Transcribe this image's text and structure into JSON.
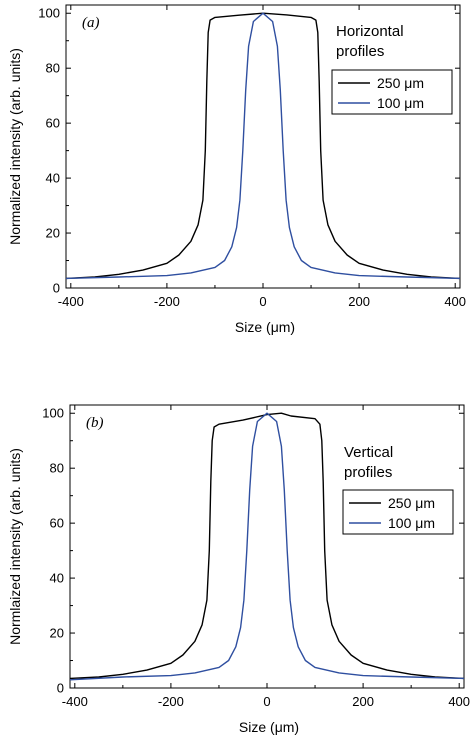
{
  "chart_data": [
    {
      "type": "line",
      "panel_label": "(a)",
      "annotation": [
        "Horizontal",
        "profiles"
      ],
      "xlabel": "Size (μm)",
      "ylabel": "Normalized intensity (arb. units)",
      "xlim": [
        -410,
        410
      ],
      "ylim": [
        0,
        103
      ],
      "xticks": [
        -400,
        -200,
        0,
        200,
        400
      ],
      "yticks": [
        0,
        20,
        40,
        60,
        80,
        100
      ],
      "grid": false,
      "legend_position": "right",
      "series": [
        {
          "name": "250 μm",
          "color": "#000000",
          "x": [
            -410,
            -350,
            -300,
            -250,
            -200,
            -175,
            -150,
            -135,
            -125,
            -120,
            -117,
            -114,
            -110,
            -100,
            -50,
            0,
            50,
            100,
            110,
            114,
            117,
            120,
            125,
            135,
            150,
            175,
            200,
            250,
            300,
            350,
            410
          ],
          "y": [
            3.5,
            4,
            5,
            6.5,
            9,
            12,
            17,
            23,
            32,
            50,
            75,
            93,
            97.5,
            98.5,
            99.3,
            100,
            99.4,
            98.5,
            97.5,
            93,
            75,
            50,
            32,
            23,
            17,
            12,
            9,
            6.5,
            5,
            4,
            3.5
          ]
        },
        {
          "name": "100 μm",
          "color": "#2f4fa0",
          "x": [
            -410,
            -300,
            -200,
            -150,
            -100,
            -80,
            -65,
            -55,
            -48,
            -42,
            -36,
            -30,
            -20,
            0,
            20,
            30,
            36,
            42,
            48,
            55,
            65,
            80,
            100,
            150,
            200,
            300,
            410
          ],
          "y": [
            3.5,
            4,
            4.5,
            5.5,
            7.5,
            10,
            15,
            22,
            32,
            50,
            72,
            88,
            97,
            100,
            97,
            88,
            72,
            50,
            32,
            22,
            15,
            10,
            7.5,
            5.5,
            4.5,
            4,
            3.5
          ]
        }
      ]
    },
    {
      "type": "line",
      "panel_label": "(b)",
      "annotation": [
        "Vertical",
        "profiles"
      ],
      "xlabel": "Size (μm)",
      "ylabel": "Normlaized intensity (arb. units)",
      "xlim": [
        -410,
        410
      ],
      "ylim": [
        0,
        103
      ],
      "xticks": [
        -400,
        -200,
        0,
        200,
        400
      ],
      "yticks": [
        0,
        20,
        40,
        60,
        80,
        100
      ],
      "grid": false,
      "legend_position": "right",
      "series": [
        {
          "name": "250 μm",
          "color": "#000000",
          "x": [
            -410,
            -350,
            -300,
            -250,
            -200,
            -175,
            -150,
            -135,
            -125,
            -120,
            -117,
            -114,
            -110,
            -100,
            -50,
            0,
            30,
            50,
            100,
            110,
            114,
            117,
            120,
            125,
            135,
            150,
            175,
            200,
            250,
            300,
            350,
            410
          ],
          "y": [
            3.5,
            4,
            5,
            6.5,
            9,
            12,
            17,
            23,
            32,
            50,
            75,
            90,
            95,
            96,
            97.5,
            99.5,
            100,
            99,
            98,
            96,
            90,
            75,
            50,
            32,
            23,
            17,
            12,
            9,
            6.5,
            5,
            4,
            3.5
          ]
        },
        {
          "name": "100 μm",
          "color": "#2f4fa0",
          "x": [
            -410,
            -300,
            -200,
            -150,
            -100,
            -80,
            -65,
            -55,
            -48,
            -42,
            -36,
            -30,
            -20,
            0,
            20,
            30,
            36,
            42,
            48,
            55,
            65,
            80,
            100,
            150,
            200,
            300,
            410
          ],
          "y": [
            3,
            4,
            4.5,
            5.5,
            7.5,
            10,
            15,
            22,
            32,
            50,
            72,
            88,
            97,
            100,
            97,
            88,
            72,
            50,
            32,
            22,
            15,
            10,
            7.5,
            5.5,
            4.5,
            4,
            3.5
          ]
        }
      ]
    }
  ]
}
